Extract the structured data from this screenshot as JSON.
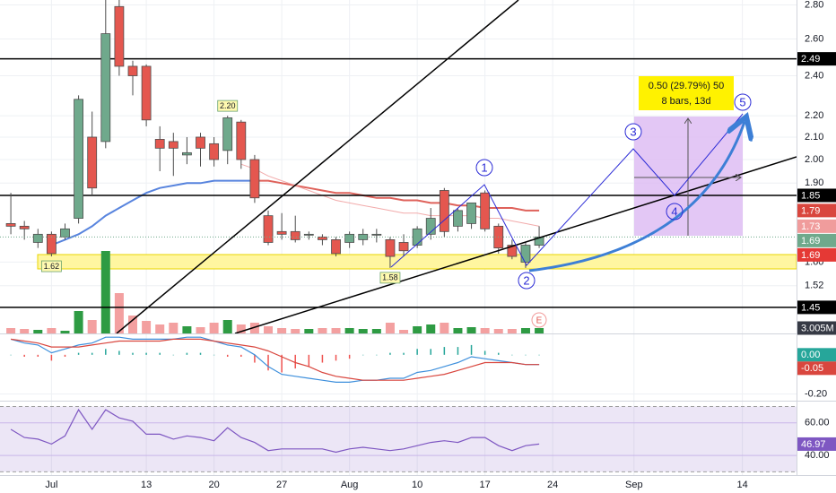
{
  "chart_data": {
    "type": "candlestick",
    "log_scale": true,
    "grid": true,
    "up_color": "#6fa98c",
    "down_color": "#e4574f",
    "xlim": [
      -0.8,
      58
    ],
    "ylim": [
      1.37,
      2.83
    ],
    "xticks": [
      {
        "value": 3,
        "label": "Jul"
      },
      {
        "value": 10,
        "label": "13"
      },
      {
        "value": 15,
        "label": "20"
      },
      {
        "value": 20,
        "label": "27"
      },
      {
        "value": 25,
        "label": "Aug"
      },
      {
        "value": 30,
        "label": "10"
      },
      {
        "value": 35,
        "label": "17"
      },
      {
        "value": 40,
        "label": "24"
      },
      {
        "value": 46,
        "label": "Sep"
      },
      {
        "value": 54,
        "label": "14"
      }
    ],
    "yticks": [
      {
        "value": 2.8,
        "label": "2.80"
      },
      {
        "value": 2.6,
        "label": "2.60"
      },
      {
        "value": 2.4,
        "label": "2.40"
      },
      {
        "value": 2.2,
        "label": "2.20"
      },
      {
        "value": 2.1,
        "label": "2.10"
      },
      {
        "value": 2.0,
        "label": "2.00"
      },
      {
        "value": 1.9,
        "label": "1.90"
      },
      {
        "value": 1.6,
        "label": "1.60"
      },
      1.52
    ],
    "open": [
      1.74,
      1.73,
      1.67,
      1.7,
      1.69,
      1.76,
      2.1,
      2.08,
      2.79,
      2.45,
      2.45,
      2.09,
      2.08,
      2.02,
      2.1,
      2.07,
      2.04,
      2.17,
      2.0,
      1.77,
      1.71,
      1.71,
      1.7,
      1.69,
      1.68,
      1.67,
      1.68,
      1.7,
      1.68,
      1.67,
      1.66,
      1.7,
      1.87,
      1.73,
      1.74,
      1.86,
      1.73,
      1.66,
      1.6,
      1.66
    ],
    "high": [
      1.86,
      1.75,
      1.72,
      1.71,
      1.74,
      2.3,
      2.22,
      2.85,
      2.85,
      2.48,
      2.46,
      2.15,
      2.12,
      2.1,
      2.12,
      2.1,
      2.2,
      2.18,
      2.02,
      1.79,
      1.78,
      1.77,
      1.71,
      1.7,
      1.69,
      1.71,
      1.72,
      1.72,
      1.69,
      1.7,
      1.73,
      1.8,
      1.88,
      1.8,
      1.82,
      1.87,
      1.74,
      1.68,
      1.67,
      1.73
    ],
    "low": [
      1.7,
      1.68,
      1.65,
      1.62,
      1.68,
      1.74,
      1.85,
      2.05,
      2.4,
      2.3,
      2.15,
      1.95,
      1.93,
      1.98,
      1.97,
      1.97,
      1.98,
      1.96,
      1.82,
      1.66,
      1.68,
      1.67,
      1.68,
      1.66,
      1.62,
      1.65,
      1.66,
      1.67,
      1.58,
      1.62,
      1.65,
      1.68,
      1.69,
      1.71,
      1.72,
      1.71,
      1.63,
      1.61,
      1.58,
      1.65
    ],
    "close": [
      1.73,
      1.72,
      1.7,
      1.63,
      1.72,
      2.28,
      1.88,
      2.63,
      2.45,
      2.4,
      2.18,
      2.05,
      2.05,
      2.03,
      2.05,
      2.0,
      2.19,
      2.0,
      1.84,
      1.67,
      1.7,
      1.68,
      1.7,
      1.68,
      1.63,
      1.7,
      1.7,
      1.7,
      1.62,
      1.64,
      1.72,
      1.76,
      1.71,
      1.79,
      1.82,
      1.72,
      1.65,
      1.62,
      1.66,
      1.69
    ],
    "high_labels": [
      {
        "value": 2.2,
        "label": "2.20"
      }
    ],
    "low_labels": [
      1.62,
      1.58
    ],
    "ma_series": [
      {
        "color": "#3b6fd8",
        "width": 2,
        "values": [
          null,
          null,
          null,
          1.66,
          1.68,
          1.7,
          1.73,
          1.77,
          1.8,
          1.83,
          1.86,
          1.88,
          1.89,
          1.9,
          1.9,
          1.91,
          1.91,
          1.91,
          1.91,
          null,
          null,
          null,
          null,
          null,
          null,
          null,
          null,
          null,
          null,
          null,
          null,
          null,
          null,
          null,
          null,
          null,
          null,
          null,
          null,
          null
        ]
      },
      {
        "color": "#d9463e",
        "width": 2,
        "values": [
          null,
          null,
          null,
          null,
          null,
          null,
          null,
          null,
          null,
          null,
          null,
          null,
          null,
          null,
          null,
          null,
          null,
          null,
          1.91,
          1.91,
          1.9,
          1.89,
          1.88,
          1.87,
          1.86,
          1.86,
          1.85,
          1.84,
          1.84,
          1.83,
          1.83,
          1.82,
          1.82,
          1.81,
          1.81,
          1.8,
          1.8,
          1.8,
          1.79,
          1.79
        ]
      },
      {
        "color": "#f09c9c",
        "width": 1,
        "values": [
          null,
          null,
          null,
          null,
          null,
          null,
          null,
          null,
          null,
          null,
          null,
          null,
          null,
          null,
          null,
          null,
          null,
          1.98,
          1.96,
          1.93,
          1.91,
          1.89,
          1.87,
          1.85,
          1.83,
          1.82,
          1.81,
          1.8,
          1.79,
          1.78,
          1.78,
          1.77,
          1.77,
          1.77,
          1.77,
          1.76,
          1.76,
          1.75,
          1.74,
          1.73
        ]
      }
    ],
    "hlines": [
      2.49,
      1.85,
      1.45
    ],
    "hline_color": "#000000",
    "extra_labels": [
      {
        "value": 1.69,
        "color": "#e53935"
      }
    ],
    "volume": {
      "ylim": [
        0,
        186
      ],
      "up_color": "#2e9b43",
      "down_color": "#f3a0a0",
      "label_color": "#363a45",
      "values": [
        3,
        2.5,
        2,
        3,
        1.5,
        12.5,
        7.5,
        46,
        22.5,
        10,
        7,
        5,
        6,
        4,
        3.5,
        6,
        7.5,
        5,
        6,
        4,
        3,
        2.5,
        2.5,
        3,
        3,
        3,
        2.5,
        2.5,
        6,
        2,
        4,
        5,
        6,
        3,
        3.5,
        3,
        2.5,
        2.5,
        3,
        3.005
      ],
      "value_labels": [
        null,
        null,
        null,
        null,
        null,
        null,
        null,
        null,
        null,
        null,
        null,
        null,
        null,
        null,
        null,
        null,
        null,
        null,
        null,
        null,
        null,
        null,
        null,
        null,
        null,
        null,
        null,
        null,
        null,
        null,
        null,
        null,
        null,
        null,
        null,
        null,
        null,
        null,
        null,
        "3.005M"
      ]
    },
    "macd": {
      "ylim": [
        -0.23,
        0.1
      ],
      "yticks": [
        {
          "value": -0.2,
          "label": "-0.20"
        }
      ],
      "macd_line": {
        "color": "#3d8fdc",
        "values": [
          0.08,
          0.06,
          0.05,
          0.01,
          0.03,
          0.05,
          0.06,
          0.09,
          0.09,
          0.08,
          0.08,
          0.08,
          0.08,
          0.09,
          0.09,
          0.07,
          0.05,
          0.04,
          0,
          -0.06,
          -0.1,
          -0.11,
          -0.12,
          -0.13,
          -0.14,
          -0.14,
          -0.13,
          -0.13,
          -0.12,
          -0.12,
          -0.09,
          -0.08,
          -0.06,
          -0.04,
          -0.01,
          -0.02,
          -0.03,
          -0.04,
          -0.05,
          -0.05
        ]
      },
      "signal_line": {
        "color": "#d9463e",
        "values": [
          0.08,
          0.07,
          0.06,
          0.04,
          0.04,
          0.04,
          0.05,
          0.06,
          0.07,
          0.07,
          0.07,
          0.07,
          0.08,
          0.08,
          0.08,
          0.07,
          0.06,
          0.05,
          0.04,
          0.02,
          -0.01,
          -0.04,
          -0.06,
          -0.09,
          -0.11,
          -0.12,
          -0.13,
          -0.13,
          -0.13,
          -0.13,
          -0.12,
          -0.11,
          -0.1,
          -0.08,
          -0.06,
          -0.04,
          -0.04,
          -0.04,
          -0.05,
          -0.05
        ]
      },
      "histogram": {
        "up_color": "#26a69a",
        "down_color": "#ef5350",
        "values": [
          0,
          -0.01,
          -0.01,
          -0.03,
          -0.01,
          0.01,
          0.01,
          0.03,
          0.02,
          0.01,
          0.01,
          0.01,
          0,
          0.01,
          0.01,
          0,
          -0.01,
          -0.01,
          -0.04,
          -0.08,
          -0.09,
          -0.07,
          -0.06,
          -0.04,
          -0.03,
          -0.02,
          0,
          0,
          0.01,
          0.01,
          0.03,
          0.03,
          0.04,
          0.04,
          0.05,
          0.02,
          0.01,
          0,
          0,
          0
        ],
        "value_labels": [
          null,
          null,
          null,
          null,
          null,
          null,
          null,
          null,
          null,
          null,
          null,
          null,
          null,
          null,
          null,
          null,
          null,
          null,
          null,
          null,
          null,
          null,
          null,
          null,
          null,
          null,
          null,
          null,
          null,
          null,
          null,
          null,
          null,
          null,
          null,
          null,
          null,
          null,
          null,
          "0.00"
        ]
      }
    },
    "rsi": {
      "ylim": [
        28,
        73
      ],
      "yticks": [
        {
          "value": 60,
          "label": "60.00"
        },
        {
          "value": 40,
          "label": "40.00"
        }
      ],
      "bands": [
        30,
        70
      ],
      "color": "#7e57c2",
      "values": [
        56,
        51,
        50,
        47,
        52,
        68,
        56,
        68,
        63,
        61,
        53,
        53,
        50,
        52,
        51,
        49,
        57,
        51,
        48,
        43,
        44,
        44,
        44,
        44,
        42,
        44,
        45,
        44,
        43,
        44,
        46,
        48,
        49,
        48,
        51,
        51,
        46,
        43,
        46,
        46.97
      ]
    },
    "annotations": {
      "waves": [
        "1",
        "2",
        "3",
        "4",
        "5"
      ],
      "earnings": "E",
      "projection": [
        "0.50 (29.79%) 50",
        "8 bars, 13d"
      ]
    }
  }
}
